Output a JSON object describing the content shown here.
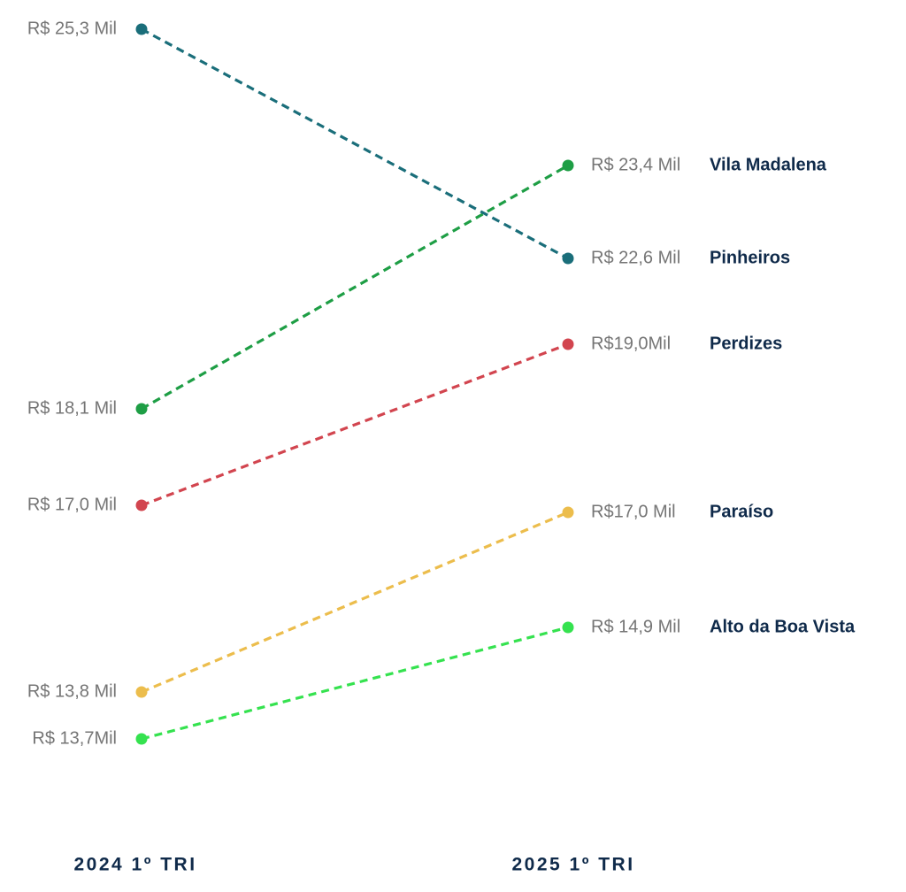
{
  "chart_data": {
    "type": "line",
    "categories": [
      "2024 1º TRI",
      "2025 1º TRI"
    ],
    "unit": "R$ Mil",
    "series": [
      {
        "name": "Vila Madalena",
        "values": [
          18.1,
          23.4
        ],
        "labels": [
          "R$ 18,1 Mil",
          "R$ 23,4 Mil"
        ],
        "color": "#1e9e45"
      },
      {
        "name": "Pinheiros",
        "values": [
          25.3,
          22.6
        ],
        "labels": [
          "R$ 25,3 Mil",
          "R$ 22,6 Mil"
        ],
        "color": "#1a6e7a"
      },
      {
        "name": "Perdizes",
        "values": [
          17.0,
          19.0
        ],
        "labels": [
          "R$ 17,0 Mil",
          "R$19,0Mil"
        ],
        "color": "#d2454f"
      },
      {
        "name": "Paraíso",
        "values": [
          13.8,
          17.0
        ],
        "labels": [
          "R$ 13,8 Mil",
          "R$17,0 Mil"
        ],
        "color": "#ecbd4c"
      },
      {
        "name": "Alto da Boa Vista",
        "values": [
          13.7,
          14.9
        ],
        "labels": [
          "R$ 13,7Mil",
          "R$ 14,9 Mil"
        ],
        "color": "#35e24f"
      }
    ],
    "line_style": "dashed",
    "grid": false,
    "legend": "right (labels at line ends)"
  }
}
